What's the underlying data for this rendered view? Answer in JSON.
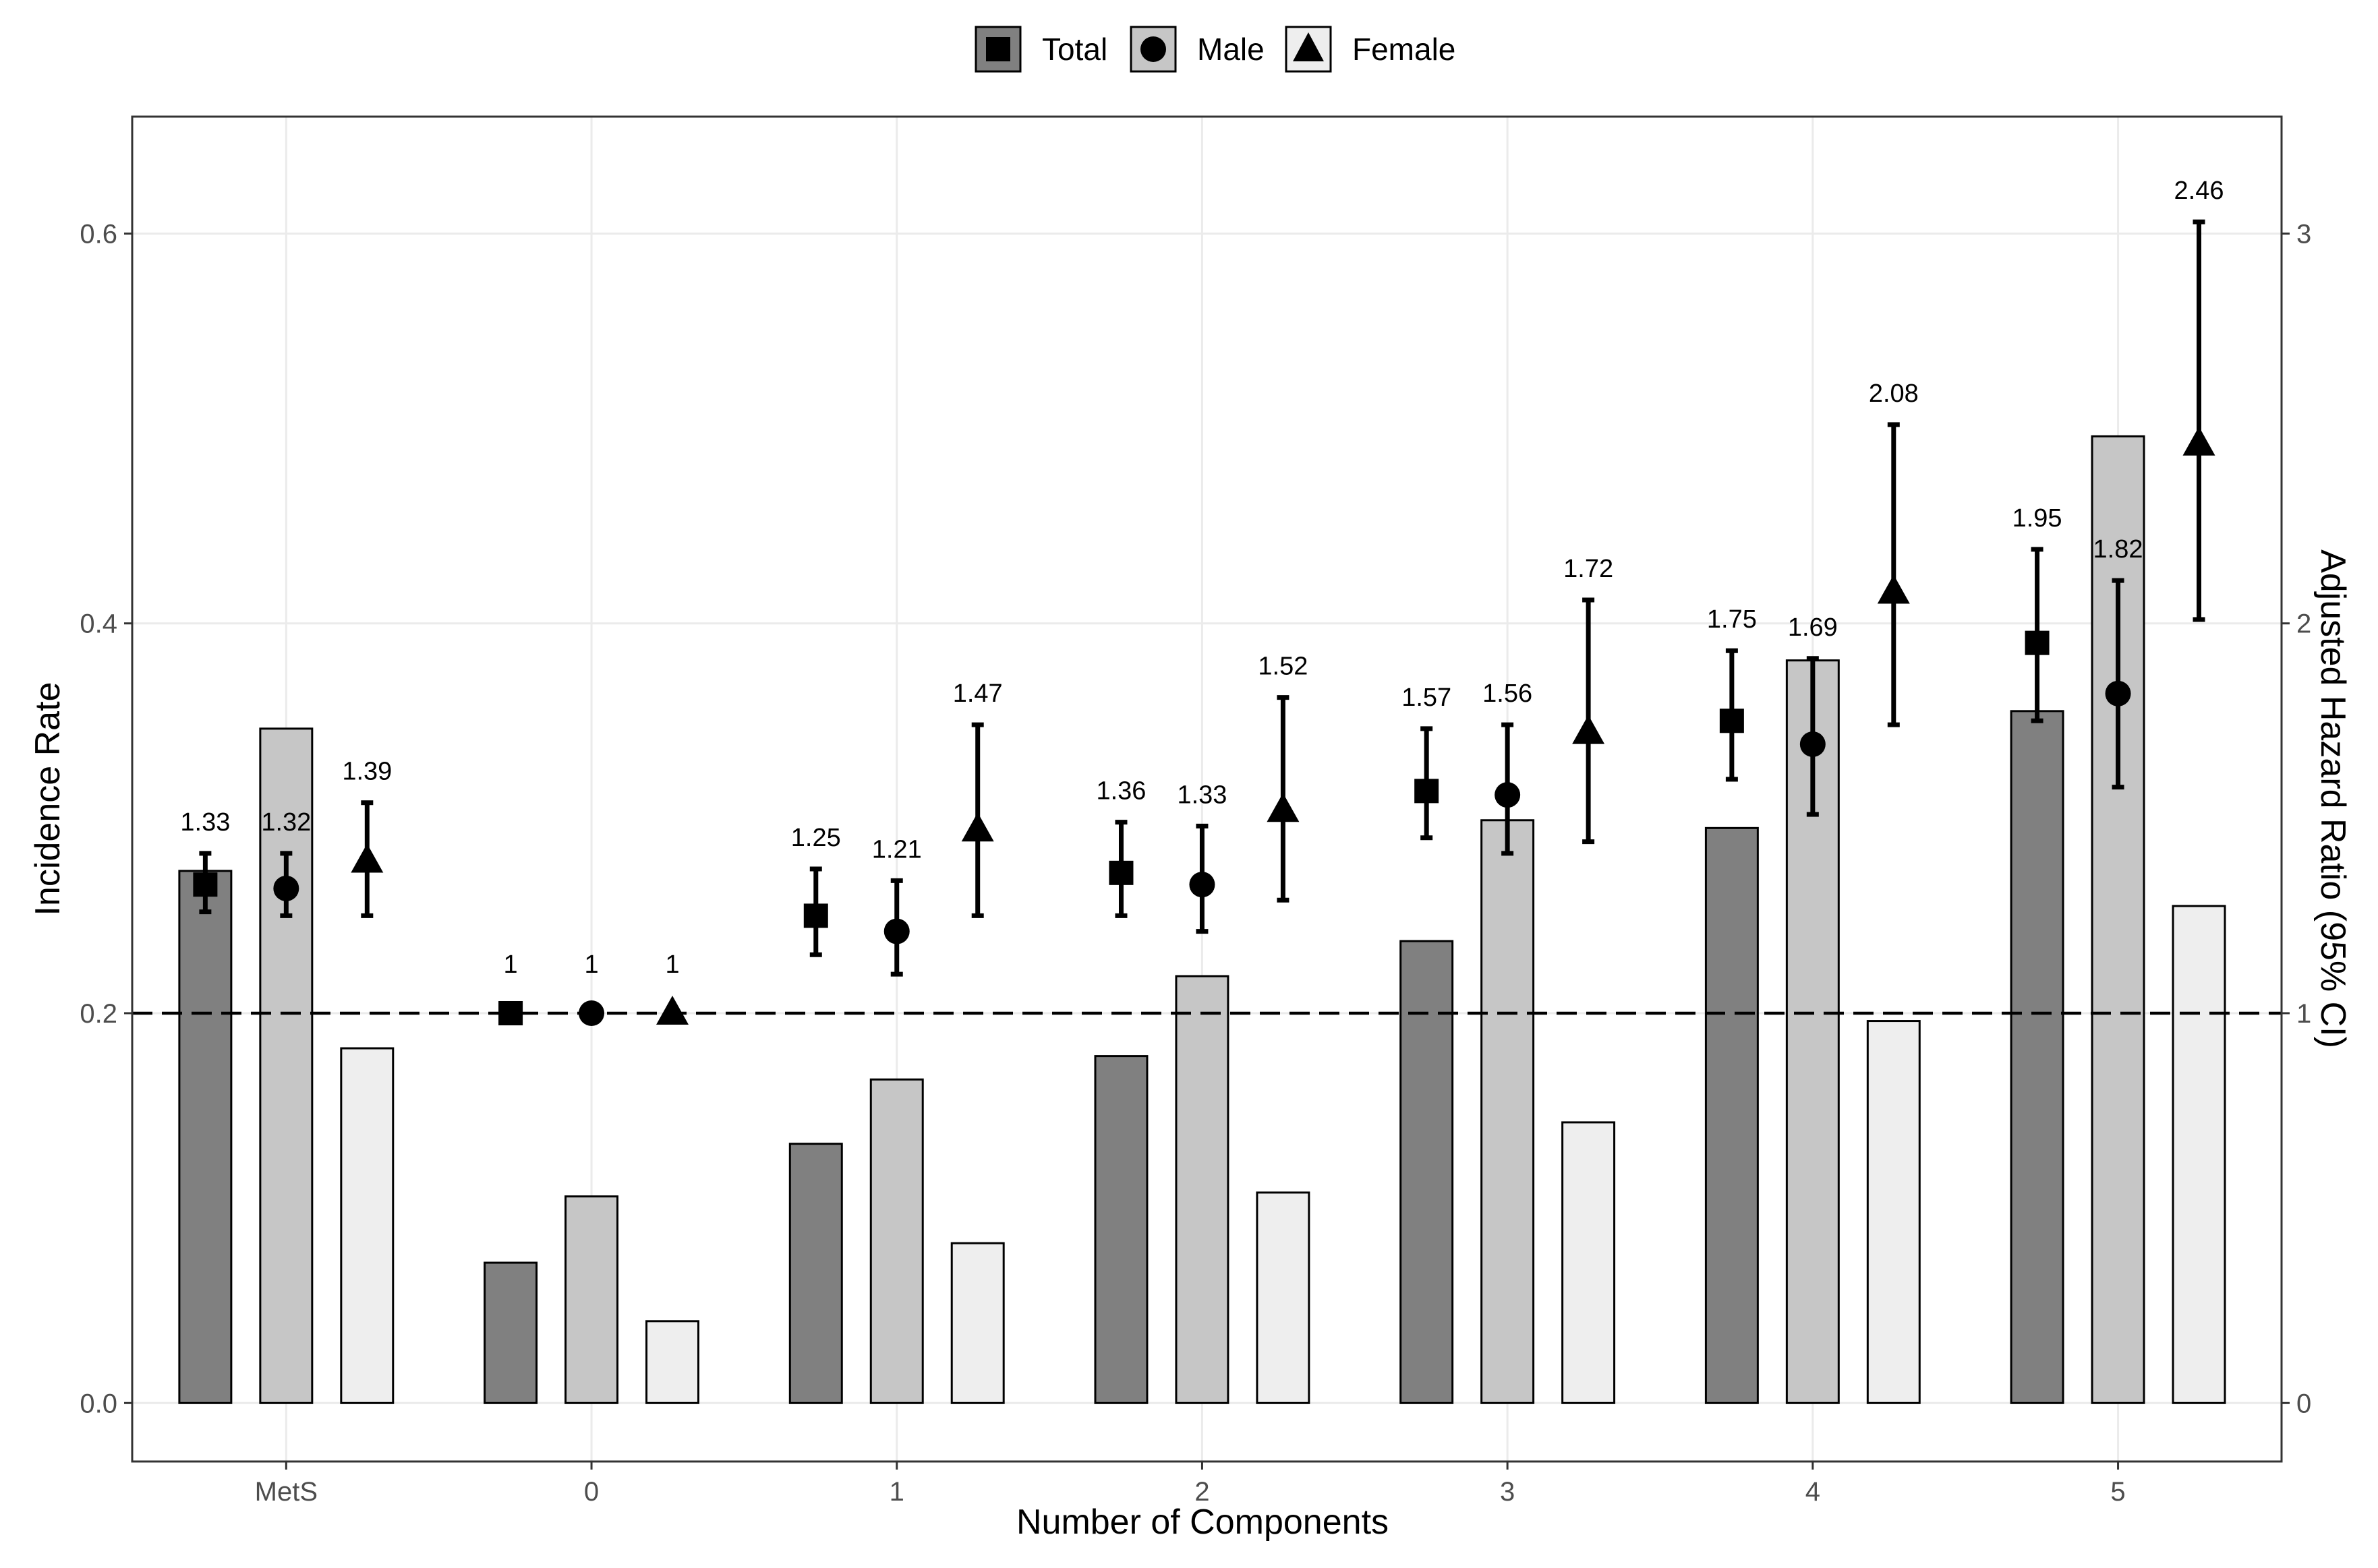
{
  "chart_data": {
    "type": "bar",
    "title": "",
    "xlabel": "Number of Components",
    "ylabel": "Incidence Rate",
    "y2label": "Adjusted Hazard Ratio (95% CI)",
    "categories": [
      "MetS",
      "0",
      "1",
      "2",
      "3",
      "4",
      "5"
    ],
    "ylim": [
      -0.03,
      0.66
    ],
    "yticks": [
      "0.0",
      "0.2",
      "0.4",
      "0.6"
    ],
    "y2lim": [
      -0.15,
      3.3
    ],
    "y2ticks": [
      "0",
      "1",
      "2",
      "3"
    ],
    "reference_line_hr": 1,
    "legend": {
      "position": "top",
      "items": [
        {
          "name": "Total",
          "shape": "square"
        },
        {
          "name": "Male",
          "shape": "circle"
        },
        {
          "name": "Female",
          "shape": "triangle"
        }
      ]
    },
    "bar_series": [
      {
        "name": "Total",
        "color": "#808080",
        "values": [
          0.273,
          0.072,
          0.133,
          0.178,
          0.237,
          0.295,
          0.355
        ]
      },
      {
        "name": "Male",
        "color": "#c6c6c6",
        "values": [
          0.346,
          0.106,
          0.166,
          0.219,
          0.299,
          0.381,
          0.496
        ]
      },
      {
        "name": "Female",
        "color": "#eeeeee",
        "values": [
          0.182,
          0.042,
          0.082,
          0.108,
          0.144,
          0.196,
          0.255
        ]
      }
    ],
    "hr_series": [
      {
        "name": "Total",
        "hr": [
          1.33,
          1,
          1.25,
          1.36,
          1.57,
          1.75,
          1.95
        ],
        "labels": [
          "1.33",
          "1",
          "1.25",
          "1.36",
          "1.57",
          "1.75",
          "1.95"
        ],
        "ci_low": [
          1.26,
          1,
          1.15,
          1.25,
          1.45,
          1.6,
          1.75
        ],
        "ci_high": [
          1.41,
          1,
          1.37,
          1.49,
          1.73,
          1.93,
          2.19
        ]
      },
      {
        "name": "Male",
        "hr": [
          1.32,
          1,
          1.21,
          1.33,
          1.56,
          1.69,
          1.82
        ],
        "labels": [
          "1.32",
          "1",
          "1.21",
          "1.33",
          "1.56",
          "1.69",
          "1.82"
        ],
        "ci_low": [
          1.25,
          1,
          1.1,
          1.21,
          1.41,
          1.51,
          1.58
        ],
        "ci_high": [
          1.41,
          1,
          1.34,
          1.48,
          1.74,
          1.91,
          2.11
        ]
      },
      {
        "name": "Female",
        "hr": [
          1.39,
          1,
          1.47,
          1.52,
          1.72,
          2.08,
          2.46
        ],
        "labels": [
          "1.39",
          "1",
          "1.47",
          "1.52",
          "1.72",
          "2.08",
          "2.46"
        ],
        "ci_low": [
          1.25,
          1,
          1.25,
          1.29,
          1.44,
          1.74,
          2.01
        ],
        "ci_high": [
          1.54,
          1,
          1.74,
          1.81,
          2.06,
          2.51,
          3.03
        ]
      }
    ]
  }
}
